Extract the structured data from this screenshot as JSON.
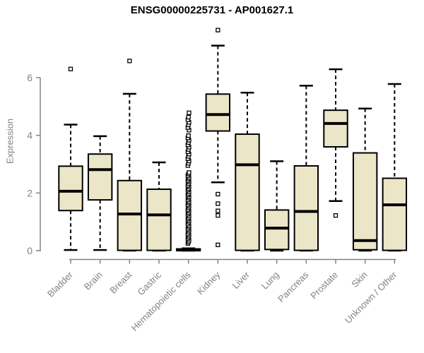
{
  "page": {
    "background": "#ffffff"
  },
  "chart_data": {
    "type": "boxplot",
    "title": "ENSG00000225731 - AP001627.1",
    "ylabel": "Expression",
    "xlabel": "",
    "yticks": [
      0,
      2,
      4,
      6
    ],
    "ylim": [
      0,
      7.8
    ],
    "grid": false,
    "legend": "none",
    "axis_color": "#838383",
    "box_fill": "#ece6c8",
    "box_stroke": "#000000",
    "categories": [
      "Bladder",
      "Brain",
      "Breast",
      "Gastric",
      "Hematopoietic cells",
      "Kidney",
      "Liver",
      "Lung",
      "Pancreas",
      "Prostate",
      "Skin",
      "Unknown / Other"
    ],
    "boxes": [
      {
        "category": "Bladder",
        "low": 0.02,
        "q1": 1.39,
        "median": 2.06,
        "q3": 2.93,
        "high": 4.37,
        "outliers": [
          6.3
        ]
      },
      {
        "category": "Brain",
        "low": 0.02,
        "q1": 1.76,
        "median": 2.81,
        "q3": 3.35,
        "high": 3.97,
        "outliers": []
      },
      {
        "category": "Breast",
        "low": 0.0,
        "q1": 0.01,
        "median": 1.27,
        "q3": 2.43,
        "high": 5.44,
        "outliers": [
          6.58
        ]
      },
      {
        "category": "Gastric",
        "low": 0.0,
        "q1": 0.01,
        "median": 1.24,
        "q3": 2.13,
        "high": 3.06,
        "outliers": []
      },
      {
        "category": "Hematopoietic cells",
        "low": 0.0,
        "q1": 0.0,
        "median": 0.02,
        "q3": 0.06,
        "high": 0.08,
        "outliers": [
          0.25,
          0.3,
          0.36,
          0.42,
          0.47,
          0.53,
          0.58,
          0.64,
          0.7,
          0.75,
          0.81,
          0.86,
          0.92,
          0.98,
          1.03,
          1.09,
          1.14,
          1.2,
          1.26,
          1.31,
          1.37,
          1.42,
          1.48,
          1.54,
          1.59,
          1.65,
          1.7,
          1.76,
          1.82,
          1.87,
          1.93,
          1.98,
          2.04,
          2.1,
          2.15,
          2.21,
          2.26,
          2.32,
          2.38,
          2.43,
          2.49,
          2.54,
          2.6,
          2.66,
          2.71,
          2.95,
          3.03,
          3.11,
          3.19,
          3.27,
          3.35,
          3.43,
          3.51,
          3.59,
          3.67,
          3.75,
          3.83,
          3.91,
          3.99,
          4.18,
          4.27,
          4.36,
          4.45,
          4.54,
          4.63,
          4.78
        ]
      },
      {
        "category": "Kidney",
        "low": 2.37,
        "q1": 4.15,
        "median": 4.72,
        "q3": 5.43,
        "high": 7.11,
        "outliers": [
          7.65,
          1.96,
          1.63,
          1.38,
          1.22,
          0.2
        ]
      },
      {
        "category": "Liver",
        "low": 0.0,
        "q1": 0.01,
        "median": 2.98,
        "q3": 4.04,
        "high": 5.48,
        "outliers": []
      },
      {
        "category": "Lung",
        "low": 0.0,
        "q1": 0.04,
        "median": 0.78,
        "q3": 1.41,
        "high": 3.1,
        "outliers": []
      },
      {
        "category": "Pancreas",
        "low": 0.0,
        "q1": 0.01,
        "median": 1.36,
        "q3": 2.94,
        "high": 5.72,
        "outliers": []
      },
      {
        "category": "Prostate",
        "low": 1.72,
        "q1": 3.6,
        "median": 4.41,
        "q3": 4.87,
        "high": 6.29,
        "outliers": [
          1.22
        ]
      },
      {
        "category": "Skin",
        "low": 0.0,
        "q1": 0.03,
        "median": 0.35,
        "q3": 3.39,
        "high": 4.93,
        "outliers": []
      },
      {
        "category": "Unknown / Other",
        "low": 0.0,
        "q1": 0.01,
        "median": 1.59,
        "q3": 2.51,
        "high": 5.78,
        "outliers": []
      }
    ]
  }
}
